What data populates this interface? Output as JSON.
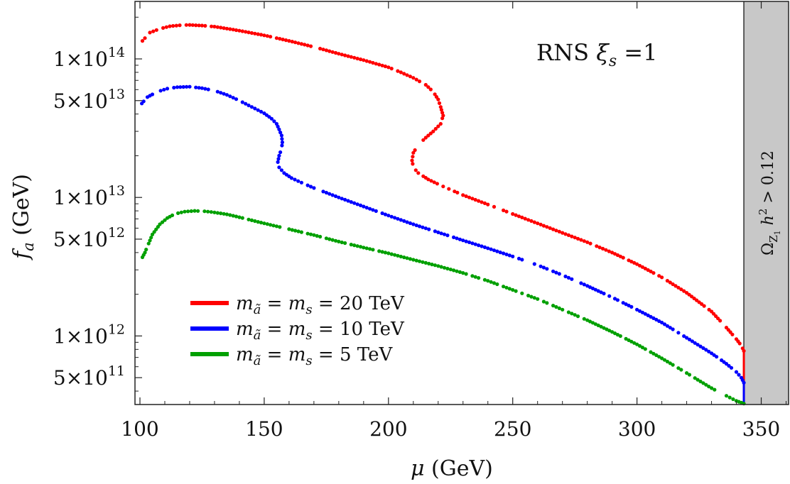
{
  "chart_data": {
    "type": "scatter",
    "title": "",
    "annotation": {
      "prefix": "RNS ",
      "symbol": "ξ",
      "subscript": "s",
      "suffix": " =1"
    },
    "xlabel": {
      "symbol": "μ",
      "unit": " (GeV)"
    },
    "ylabel": {
      "symbol": "f",
      "subscript": "a",
      "unit": " (GeV)"
    },
    "xlim": [
      98,
      361
    ],
    "ylim": [
      320000000000.0,
      260000000000000.0
    ],
    "yscale": "log",
    "x_ticks": [
      {
        "value": 100,
        "label": "100"
      },
      {
        "value": 150,
        "label": "150"
      },
      {
        "value": 200,
        "label": "200"
      },
      {
        "value": 250,
        "label": "250"
      },
      {
        "value": 300,
        "label": "300"
      },
      {
        "value": 350,
        "label": "350"
      }
    ],
    "y_ticks": [
      {
        "value": 100000000000000.0,
        "mantissa": "1",
        "exponent": "14"
      },
      {
        "value": 50000000000000.0,
        "mantissa": "5",
        "exponent": "13"
      },
      {
        "value": 10000000000000.0,
        "mantissa": "1",
        "exponent": "13"
      },
      {
        "value": 5000000000000.0,
        "mantissa": "5",
        "exponent": "12"
      },
      {
        "value": 1000000000000.0,
        "mantissa": "1",
        "exponent": "12"
      },
      {
        "value": 500000000000.0,
        "mantissa": "5",
        "exponent": "11"
      }
    ],
    "excluded_band": {
      "x_range": [
        343,
        361
      ],
      "color": "#c8c8c8",
      "label": {
        "omega": "Ω",
        "omega_sub": "Z",
        "omega_sub2": "1",
        "h": " h",
        "h_sup": "2",
        "rest": " > 0.12"
      }
    },
    "legend_position": "bottom-left",
    "series": [
      {
        "name": "m_ã = m_s = 20 TeV",
        "legend": {
          "m": "m",
          "sub1": "ã",
          "mid": " = ",
          "m2": "m",
          "sub2": "s",
          "value": " = 20 TeV"
        },
        "color": "#ff0000",
        "x": [
          101,
          104,
          108,
          112,
          116,
          120,
          125,
          130,
          140,
          150,
          160,
          170,
          180,
          190,
          200,
          205,
          210,
          215,
          218,
          220,
          221,
          222,
          221,
          218,
          215,
          212,
          210,
          209.5,
          210,
          212,
          216,
          222,
          230,
          240,
          250,
          260,
          270,
          280,
          290,
          300,
          310,
          320,
          330,
          336,
          340,
          342,
          343
        ],
        "y": [
          135000000000000.0,
          155000000000000.0,
          165000000000000.0,
          172000000000000.0,
          175000000000000.0,
          176000000000000.0,
          174000000000000.0,
          171000000000000.0,
          160000000000000.0,
          148000000000000.0,
          135000000000000.0,
          122000000000000.0,
          109000000000000.0,
          98000000000000.0,
          87000000000000.0,
          80000000000000.0,
          73000000000000.0,
          65000000000000.0,
          58000000000000.0,
          51000000000000.0,
          45000000000000.0,
          39000000000000.0,
          34000000000000.0,
          30000000000000.0,
          27000000000000.0,
          24000000000000.0,
          21000000000000.0,
          18500000000000.0,
          16500000000000.0,
          15000000000000.0,
          13500000000000.0,
          12000000000000.0,
          10400000000000.0,
          8900000000000.0,
          7600000000000.0,
          6500000000000.0,
          5550000000000.0,
          4750000000000.0,
          4000000000000.0,
          3300000000000.0,
          2650000000000.0,
          2050000000000.0,
          1500000000000.0,
          1150000000000.0,
          950000000000.0,
          850000000000.0,
          780000000000.0
        ]
      },
      {
        "name": "m_ã = m_s = 10 TeV",
        "legend": {
          "m": "m",
          "sub1": "ã",
          "mid": " = ",
          "m2": "m",
          "sub2": "s",
          "value": " = 10 TeV"
        },
        "color": "#0000ff",
        "x": [
          100,
          103,
          107,
          111,
          115,
          120,
          125,
          130,
          135,
          140,
          145,
          150,
          153,
          155,
          156,
          157,
          157.3,
          157,
          156,
          155.5,
          156,
          158,
          161,
          165,
          170,
          180,
          190,
          200,
          210,
          220,
          230,
          240,
          250,
          260,
          270,
          280,
          290,
          300,
          310,
          320,
          330,
          336,
          340,
          342,
          343
        ],
        "y": [
          46000000000000.0,
          53000000000000.0,
          58000000000000.0,
          61000000000000.0,
          62500000000000.0,
          63000000000000.0,
          61500000000000.0,
          59000000000000.0,
          55000000000000.0,
          50000000000000.0,
          45000000000000.0,
          40500000000000.0,
          37000000000000.0,
          34000000000000.0,
          31000000000000.0,
          28000000000000.0,
          25000000000000.0,
          22500000000000.0,
          20000000000000.0,
          18000000000000.0,
          16500000000000.0,
          15000000000000.0,
          13800000000000.0,
          12800000000000.0,
          11700000000000.0,
          10000000000000.0,
          8600000000000.0,
          7400000000000.0,
          6400000000000.0,
          5600000000000.0,
          4900000000000.0,
          4300000000000.0,
          3750000000000.0,
          3250000000000.0,
          2750000000000.0,
          2300000000000.0,
          1900000000000.0,
          1550000000000.0,
          1250000000000.0,
          970000000000.0,
          750000000000.0,
          630000000000.0,
          550000000000.0,
          500000000000.0,
          460000000000.0
        ]
      },
      {
        "name": "m_ã = m_s = 5 TeV",
        "legend": {
          "m": "m",
          "sub1": "ã",
          "mid": " = ",
          "m2": "m",
          "sub2": "s",
          "value": " = 5 TeV"
        },
        "color": "#00a000",
        "x": [
          101,
          102,
          105,
          108,
          111,
          114,
          118,
          122,
          126,
          130,
          135,
          140,
          150,
          160,
          170,
          180,
          190,
          200,
          210,
          220,
          230,
          240,
          250,
          260,
          270,
          280,
          290,
          300,
          310,
          320,
          330,
          336,
          340,
          342,
          343
        ],
        "y": [
          3700000000000.0,
          4000000000000.0,
          5400000000000.0,
          6400000000000.0,
          7100000000000.0,
          7600000000000.0,
          7900000000000.0,
          8000000000000.0,
          7950000000000.0,
          7800000000000.0,
          7550000000000.0,
          7200000000000.0,
          6500000000000.0,
          5900000000000.0,
          5350000000000.0,
          4800000000000.0,
          4350000000000.0,
          3950000000000.0,
          3550000000000.0,
          3200000000000.0,
          2850000000000.0,
          2500000000000.0,
          2150000000000.0,
          1850000000000.0,
          1550000000000.0,
          1300000000000.0,
          1070000000000.0,
          870000000000.0,
          690000000000.0,
          540000000000.0,
          420000000000.0,
          370000000000.0,
          340000000000.0,
          330000000000.0,
          325000000000.0
        ]
      }
    ]
  }
}
